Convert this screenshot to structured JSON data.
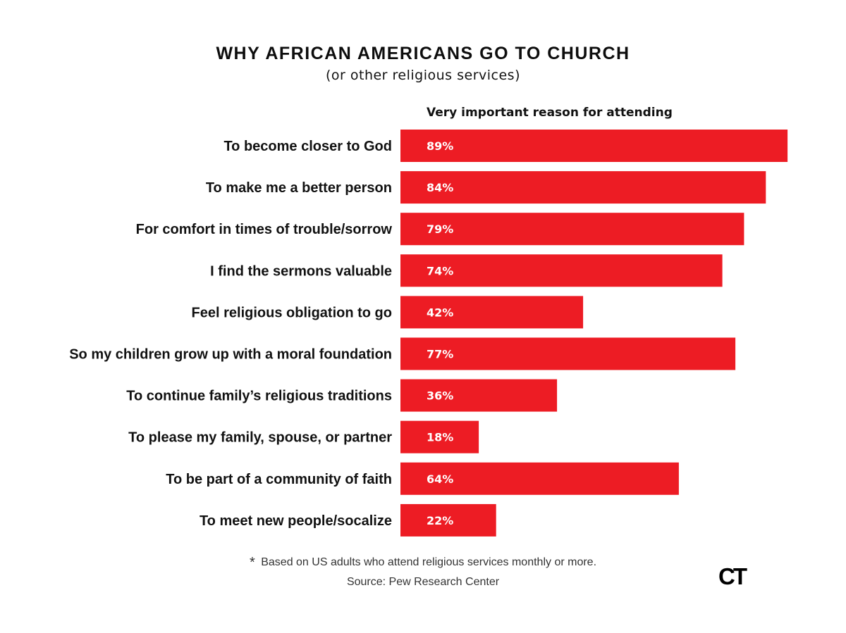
{
  "header": {
    "title": "WHY AFRICAN AMERICANS GO TO CHURCH",
    "subtitle": "(or other religious services)"
  },
  "chart_data": {
    "type": "bar",
    "orientation": "horizontal",
    "series": [
      {
        "name": "Very important reason for attending",
        "values": [
          89,
          84,
          79,
          74,
          42,
          77,
          36,
          18,
          64,
          22
        ]
      }
    ],
    "categories": [
      "To become closer to God",
      "To make me a better person",
      "For comfort in times of trouble/sorrow",
      "I find the sermons valuable",
      "Feel religious obligation to go",
      "So my children grow up with a moral foundation",
      "To continue family’s religious traditions",
      "To please my family, spouse, or partner",
      "To be part of a community of faith",
      "To meet new people/socalize"
    ],
    "value_labels": [
      "89%",
      "84%",
      "79%",
      "74%",
      "42%",
      "77%",
      "36%",
      "18%",
      "64%",
      "22%"
    ],
    "unit": "%",
    "bar_color": "#ed1c24",
    "xlim": [
      0,
      100
    ],
    "grid": false,
    "legend": "none"
  },
  "footer": {
    "footnote_marker": "*",
    "footnote": "Based on US adults who attend religious services monthly or more.",
    "source": "Source: Pew Research Center",
    "logo_text": "CT"
  }
}
